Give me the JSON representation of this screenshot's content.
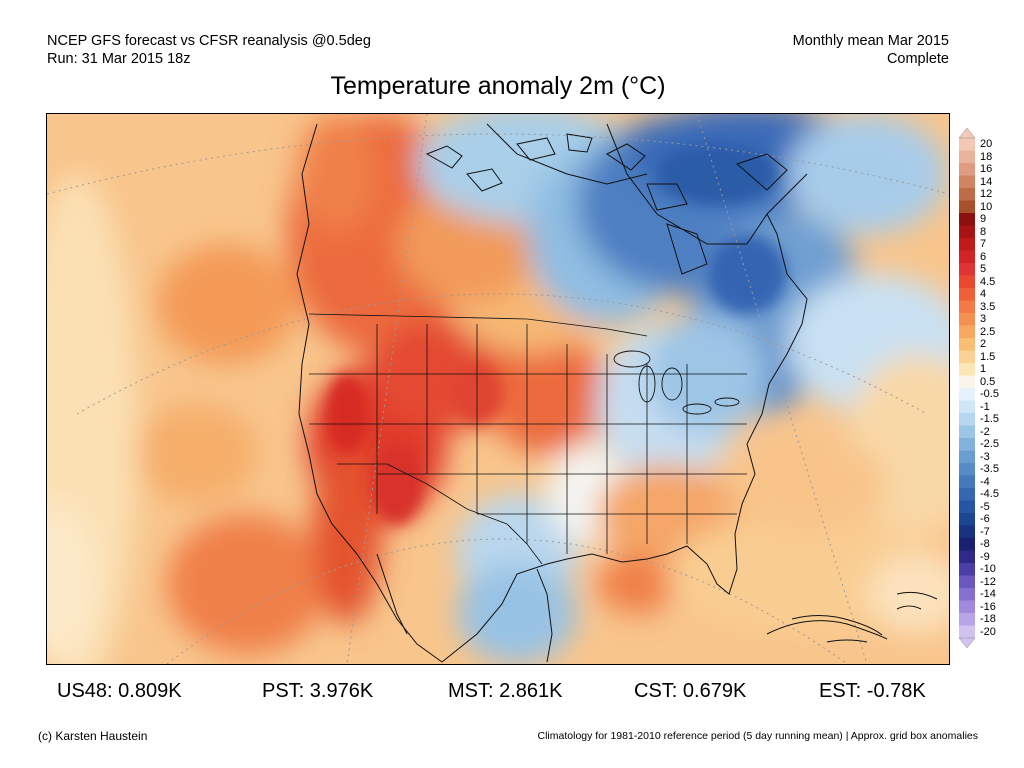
{
  "header": {
    "line1_left": "NCEP GFS forecast vs CFSR reanalysis @0.5deg",
    "line2_left": "Run: 31 Mar 2015 18z",
    "line1_right": "Monthly mean Mar 2015",
    "line2_right": "Complete"
  },
  "title": "Temperature anomaly 2m (°C)",
  "colorbar": {
    "labels": [
      "20",
      "18",
      "16",
      "14",
      "12",
      "10",
      "9",
      "8",
      "7",
      "6",
      "5",
      "4.5",
      "4",
      "3.5",
      "3",
      "2.5",
      "2",
      "1.5",
      "1",
      "0.5",
      "-0.5",
      "-1",
      "-1.5",
      "-2",
      "-2.5",
      "-3",
      "-3.5",
      "-4",
      "-4.5",
      "-5",
      "-6",
      "-7",
      "-8",
      "-9",
      "-10",
      "-12",
      "-14",
      "-16",
      "-18",
      "-20"
    ],
    "colors": [
      "#f3c9b5",
      "#eab39c",
      "#e09c82",
      "#cf8462",
      "#bd6c48",
      "#a84f2c",
      "#8e0f0f",
      "#a81414",
      "#c01a1a",
      "#d22424",
      "#e03434",
      "#e8492e",
      "#ef5f38",
      "#f27a44",
      "#f49052",
      "#f6a760",
      "#f8be74",
      "#fad394",
      "#fce6b6",
      "#fbf4ea",
      "#e6f2fb",
      "#d0e6f6",
      "#b6d7ef",
      "#9cc6e6",
      "#83b3dc",
      "#6b9fd1",
      "#568bc6",
      "#4479bb",
      "#3568b0",
      "#2656a3",
      "#1c4592",
      "#173380",
      "#1a2070",
      "#2f2a8a",
      "#4b3fa6",
      "#6a58bf",
      "#8670cf",
      "#a08adb",
      "#b8a4e6",
      "#d1c2f0"
    ]
  },
  "stats": [
    {
      "label": "US48: 0.809K"
    },
    {
      "label": "PST: 3.976K"
    },
    {
      "label": "MST: 2.861K"
    },
    {
      "label": "CST: 0.679K"
    },
    {
      "label": "EST: -0.78K"
    }
  ],
  "footer": {
    "left": "(c) Karsten Haustein",
    "right": "Climatology for 1981-2010 reference period (5 day running mean) | Approx. grid box anomalies"
  }
}
